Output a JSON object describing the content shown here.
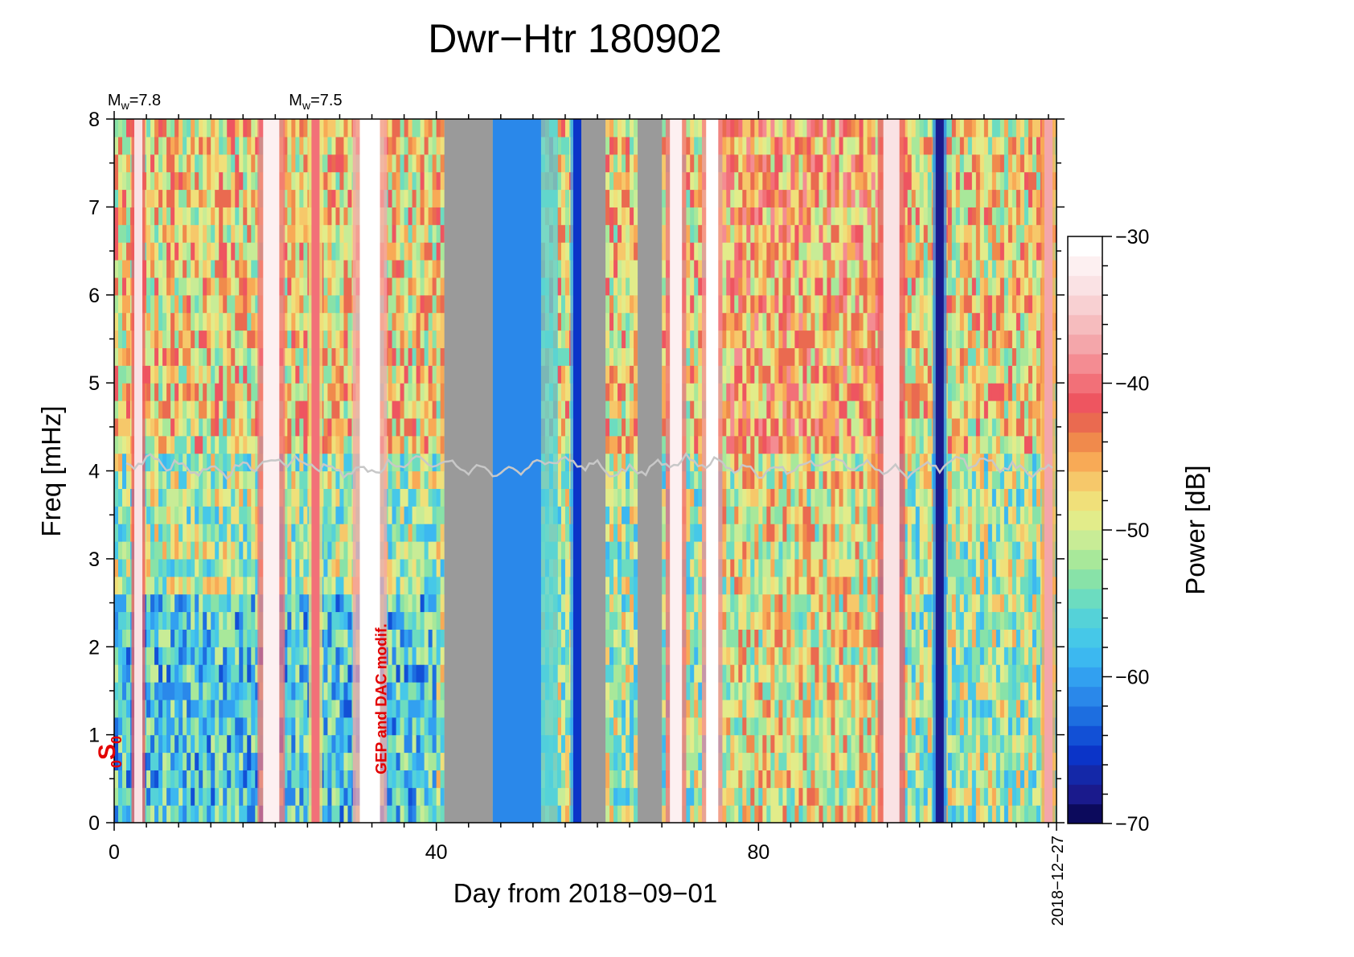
{
  "chart_data": {
    "type": "heatmap",
    "title": "Dwr−Htr 180902",
    "xlabel": "Day from 2018−09−01",
    "ylabel": "Freq [mHz]",
    "xlim": [
      0,
      117
    ],
    "ylim": [
      0,
      8
    ],
    "x_ticks": [
      {
        "value": 0,
        "label": "0"
      },
      {
        "value": 40,
        "label": "40"
      },
      {
        "value": 80,
        "label": "80"
      }
    ],
    "x_end_label": {
      "value": 117,
      "label": "2018−12−27"
    },
    "y_ticks": [
      {
        "value": 0,
        "label": "0"
      },
      {
        "value": 1,
        "label": "1"
      },
      {
        "value": 2,
        "label": "2"
      },
      {
        "value": 3,
        "label": "3"
      },
      {
        "value": 4,
        "label": "4"
      },
      {
        "value": 5,
        "label": "5"
      },
      {
        "value": 6,
        "label": "6"
      },
      {
        "value": 7,
        "label": "7"
      },
      {
        "value": 8,
        "label": "8"
      }
    ],
    "colorbar": {
      "label": "Power [dB]",
      "range": [
        -70,
        -30
      ],
      "ticks": [
        {
          "value": -30,
          "label": "−30"
        },
        {
          "value": -40,
          "label": "−40"
        },
        {
          "value": -50,
          "label": "−50"
        },
        {
          "value": -60,
          "label": "−60"
        },
        {
          "value": -70,
          "label": "−70"
        }
      ],
      "colors": [
        "#0c0a5c",
        "#1a1a8c",
        "#1428a8",
        "#0b34c8",
        "#1250d6",
        "#1d6ee0",
        "#2a88ea",
        "#32a0f0",
        "#3cb8f0",
        "#46c8e8",
        "#55d2d8",
        "#6cdcc0",
        "#88e2a8",
        "#a8e89a",
        "#c8ec96",
        "#e2ec8a",
        "#f0e07a",
        "#f6c86a",
        "#f8aa56",
        "#f08a4c",
        "#ea6a50",
        "#ee5560",
        "#f27078",
        "#f48c92",
        "#f4a6aa",
        "#f6bcbe",
        "#f8d0d2",
        "#fae2e4",
        "#fdf0f1",
        "#ffffff"
      ]
    },
    "palette": {
      "background": "#46c8e8",
      "low": "#1428a8",
      "very_low": "#0c0a5c",
      "mid": "#e2ec8a",
      "high": "#f08a4c",
      "very_high": "#fdf0f1",
      "gap": "#9a9a9a",
      "overlay_line": "#c8c8c8",
      "annotation": "#e30000"
    },
    "earthquakes": [
      {
        "day": 2.5,
        "label": "M",
        "sub": "w",
        "suffix": "=7.8"
      },
      {
        "day": 25,
        "label": "M",
        "sub": "w",
        "suffix": "=7.5"
      }
    ],
    "annotations": [
      {
        "day": 33,
        "freq": 0.55,
        "text": "GEP and DAC modif.",
        "rotation": -90
      }
    ],
    "mode_label": {
      "prefix": "0",
      "main": "S",
      "suffix": "0"
    },
    "data_gaps": [
      {
        "start": 41,
        "end": 47
      },
      {
        "start": 58,
        "end": 61
      },
      {
        "start": 65,
        "end": 68
      }
    ],
    "high_power_bands": [
      {
        "start": 2.5,
        "end": 3.5,
        "level": -34
      },
      {
        "start": 18.5,
        "end": 20.5,
        "level": -32
      },
      {
        "start": 24.5,
        "end": 25.5,
        "level": -40
      },
      {
        "start": 30.5,
        "end": 33.0,
        "level": -30
      },
      {
        "start": 69.0,
        "end": 70.5,
        "level": -32
      },
      {
        "start": 73.5,
        "end": 75.0,
        "level": -31
      },
      {
        "start": 95.5,
        "end": 97.5,
        "level": -33
      },
      {
        "start": 115.5,
        "end": 116.5,
        "level": -38
      }
    ],
    "low_power_bands": [
      {
        "start": 47,
        "end": 53,
        "level": -62
      },
      {
        "start": 57,
        "end": 58,
        "level": -66
      },
      {
        "start": 102,
        "end": 103,
        "level": -68
      }
    ],
    "overlay_line_freq": 4.05
  }
}
